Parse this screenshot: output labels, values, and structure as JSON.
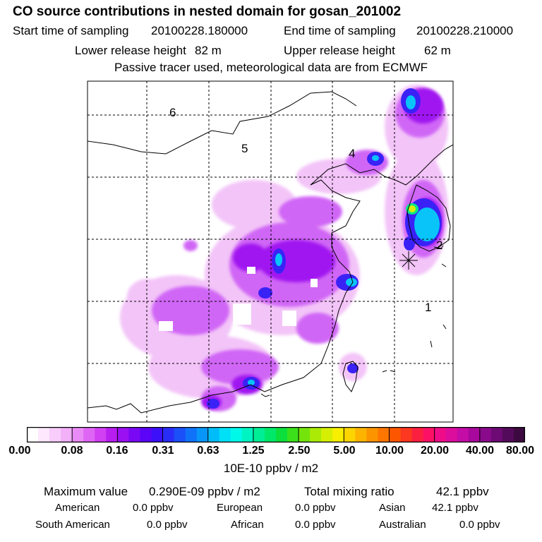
{
  "header": {
    "title": "CO  source contributions in nested domain for gosan_201002",
    "start_label": "Start time of sampling",
    "start_value": "20100228.180000",
    "end_label": "End time of sampling",
    "end_value": "20100228.210000",
    "lower_label": "Lower release height",
    "lower_value": "82 m",
    "upper_label": "Upper release height",
    "upper_value": "62 m",
    "tracer_note": "Passive tracer used, meteorological data are from ECMWF"
  },
  "map": {
    "regions": [
      "1",
      "2",
      "4",
      "5",
      "6"
    ],
    "receptor": "gosan"
  },
  "legend": {
    "ticks": [
      "0.00",
      "0.08",
      "0.16",
      "0.31",
      "0.63",
      "1.25",
      "2.50",
      "5.00",
      "10.00",
      "20.00",
      "40.00",
      "80.00"
    ],
    "unit": "10E-10 ppbv / m2",
    "colors": [
      "#ffffff",
      "#fde8fd",
      "#f8ccfb",
      "#f2b0f9",
      "#e98bf6",
      "#df66f4",
      "#d140f2",
      "#b81ef0",
      "#9a10f2",
      "#7a08f4",
      "#5b04f6",
      "#3c10f8",
      "#2a2df8",
      "#1b4ff8",
      "#0f72f8",
      "#0896f8",
      "#00bcf8",
      "#00e0f6",
      "#00f8e8",
      "#00f4c2",
      "#00ee96",
      "#00e86a",
      "#0cdf3c",
      "#3ce01a",
      "#74e40c",
      "#aaea06",
      "#d6ee04",
      "#f8ee00",
      "#fcd400",
      "#fcb400",
      "#fc9400",
      "#fc7600",
      "#fc5600",
      "#fc3820",
      "#fc2040",
      "#fc1066",
      "#f00c88",
      "#dc0c9c",
      "#c40ca6",
      "#a8089c",
      "#8a0a8c",
      "#6e0a74",
      "#540a5a",
      "#3c0a40"
    ]
  },
  "summary": {
    "max_label": "Maximum value",
    "max_value": "0.290E-09 ppbv / m2",
    "total_label": "Total mixing ratio",
    "total_value": "42.1 ppbv"
  },
  "sources": [
    {
      "name": "American",
      "value": "0.0 ppbv"
    },
    {
      "name": "European",
      "value": "0.0 ppbv"
    },
    {
      "name": "Asian",
      "value": "42.1 ppbv"
    },
    {
      "name": "South American",
      "value": "0.0 ppbv"
    },
    {
      "name": "African",
      "value": "0.0 ppbv"
    },
    {
      "name": "Australian",
      "value": "0.0 ppbv"
    }
  ]
}
